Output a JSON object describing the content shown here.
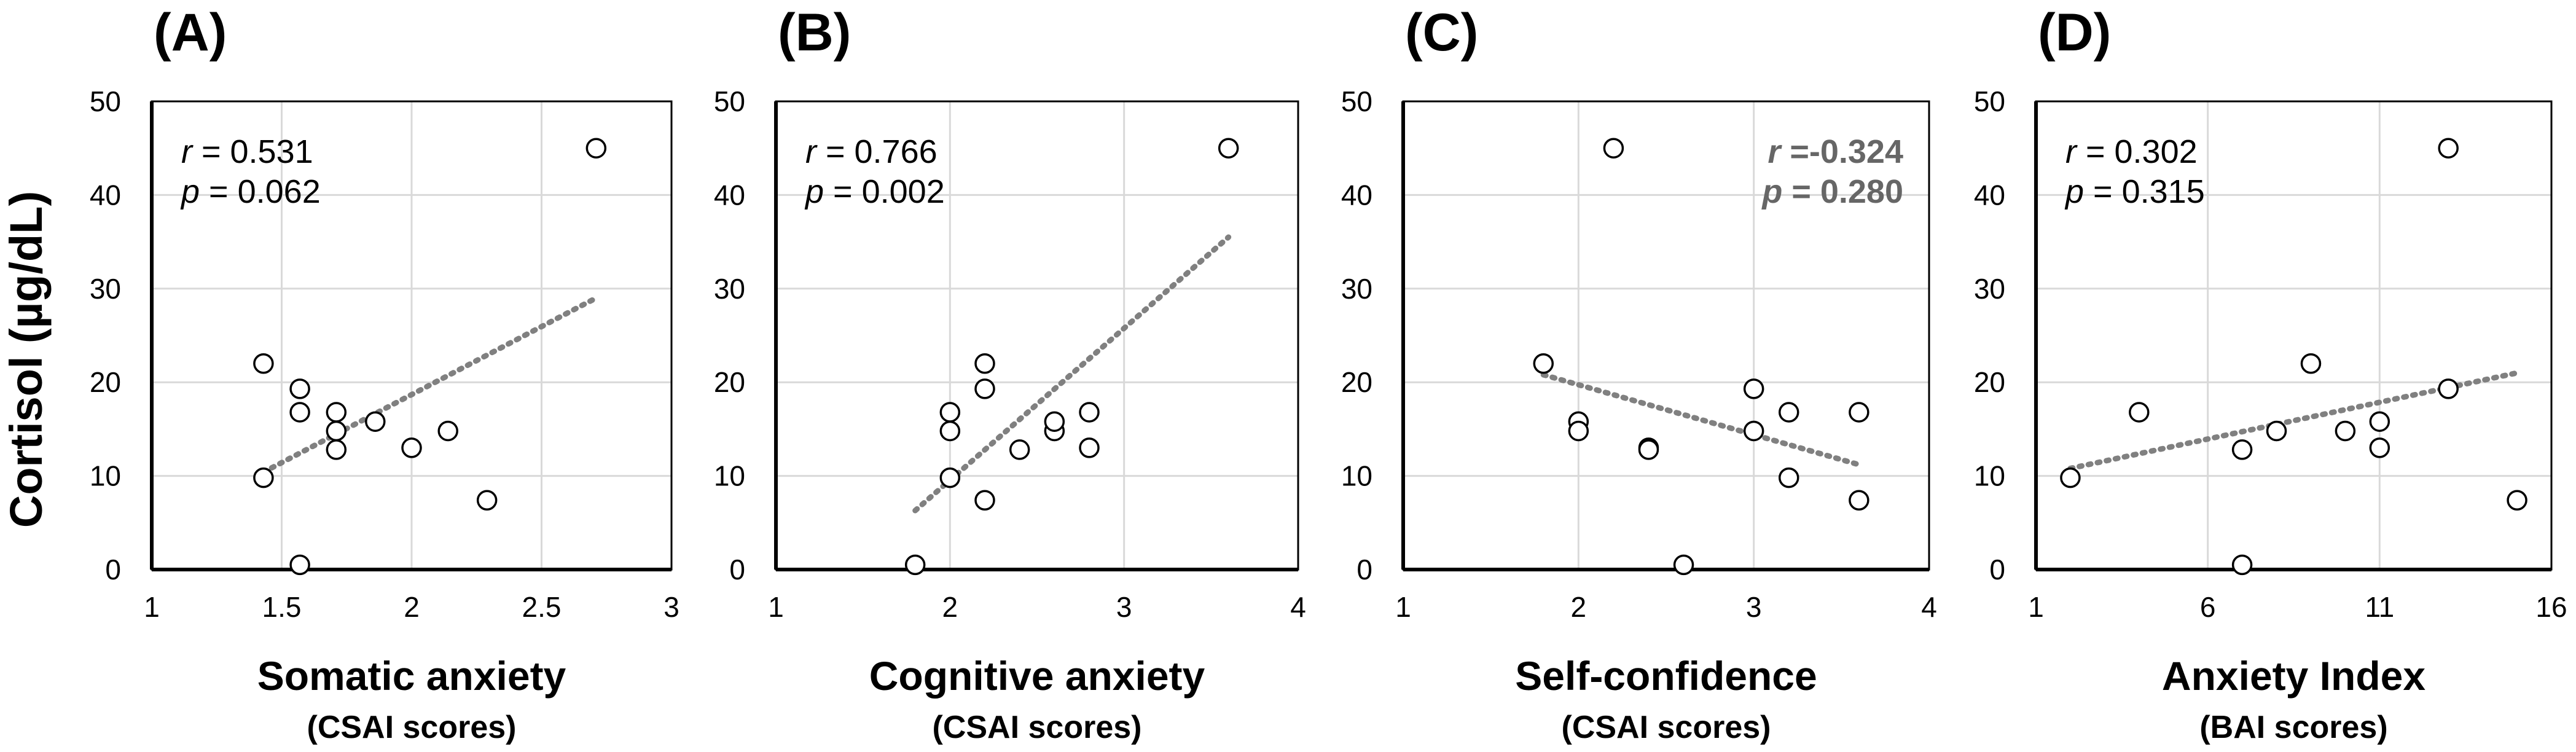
{
  "ylabel": "Cortisol (µg/dL)",
  "chart_data": [
    {
      "type": "scatter",
      "panel": "(A)",
      "xlabel": "Somatic anxiety",
      "xsublabel": "(CSAI scores)",
      "xlim": [
        1,
        3
      ],
      "xticks": [
        1,
        1.5,
        2,
        2.5,
        3
      ],
      "xtick_labels": [
        "1",
        "1.5",
        "2",
        "2.5",
        "3"
      ],
      "ylim": [
        0,
        50
      ],
      "yticks": [
        0,
        10,
        20,
        30,
        40,
        50
      ],
      "ytick_labels": [
        "0",
        "10",
        "20",
        "30",
        "40",
        "50"
      ],
      "r_label": "r = 0.531",
      "p_label": "p = 0.062",
      "r_var": "r",
      "r_value": "= 0.531",
      "p_var": "p",
      "p_value": "= 0.062",
      "stat_style": "normal",
      "stat_position": "top-left",
      "points": [
        [
          1.43,
          22
        ],
        [
          1.43,
          9.8
        ],
        [
          1.57,
          19.3
        ],
        [
          1.57,
          16.8
        ],
        [
          1.57,
          0.5
        ],
        [
          1.71,
          16.8
        ],
        [
          1.71,
          14.8
        ],
        [
          1.71,
          12.8
        ],
        [
          1.86,
          15.8
        ],
        [
          2.0,
          13.0
        ],
        [
          2.14,
          14.8
        ],
        [
          2.29,
          7.4
        ],
        [
          2.71,
          45
        ]
      ],
      "trendline": [
        [
          1.43,
          10.4
        ],
        [
          2.71,
          29.0
        ]
      ]
    },
    {
      "type": "scatter",
      "panel": "(B)",
      "xlabel": "Cognitive anxiety",
      "xsublabel": "(CSAI scores)",
      "xlim": [
        1,
        4
      ],
      "xticks": [
        1,
        2,
        3,
        4
      ],
      "xtick_labels": [
        "1",
        "2",
        "3",
        "4"
      ],
      "ylim": [
        0,
        50
      ],
      "yticks": [
        0,
        10,
        20,
        30,
        40,
        50
      ],
      "ytick_labels": [
        "0",
        "10",
        "20",
        "30",
        "40",
        "50"
      ],
      "r_label": "r = 0.766",
      "p_label": "p = 0.002",
      "r_var": "r",
      "r_value": "= 0.766",
      "p_var": "p",
      "p_value": "= 0.002",
      "stat_style": "normal",
      "stat_position": "top-left",
      "points": [
        [
          1.8,
          0.5
        ],
        [
          2.0,
          16.8
        ],
        [
          2.0,
          14.8
        ],
        [
          2.0,
          9.8
        ],
        [
          2.2,
          22
        ],
        [
          2.2,
          19.3
        ],
        [
          2.2,
          7.4
        ],
        [
          2.4,
          12.8
        ],
        [
          2.6,
          14.8
        ],
        [
          2.6,
          15.8
        ],
        [
          2.8,
          16.8
        ],
        [
          2.8,
          13.0
        ],
        [
          3.6,
          45
        ]
      ],
      "trendline": [
        [
          1.8,
          6.3
        ],
        [
          3.6,
          35.5
        ]
      ]
    },
    {
      "type": "scatter",
      "panel": "(C)",
      "xlabel": "Self-confidence",
      "xsublabel": "(CSAI scores)",
      "xlim": [
        1,
        4
      ],
      "xticks": [
        1,
        2,
        3,
        4
      ],
      "xtick_labels": [
        "1",
        "2",
        "3",
        "4"
      ],
      "ylim": [
        0,
        50
      ],
      "yticks": [
        0,
        10,
        20,
        30,
        40,
        50
      ],
      "ytick_labels": [
        "0",
        "10",
        "20",
        "30",
        "40",
        "50"
      ],
      "r_label": "r =-0.324",
      "p_label": "p = 0.280",
      "r_var": "r",
      "r_value": "=-0.324",
      "p_var": "p",
      "p_value": "= 0.280",
      "stat_style": "bold-gray",
      "stat_position": "top-right",
      "points": [
        [
          1.8,
          22
        ],
        [
          2.0,
          15.8
        ],
        [
          2.0,
          14.8
        ],
        [
          2.2,
          45
        ],
        [
          2.4,
          13.0
        ],
        [
          2.4,
          12.8
        ],
        [
          2.6,
          0.5
        ],
        [
          3.0,
          19.3
        ],
        [
          3.0,
          14.8
        ],
        [
          3.2,
          16.8
        ],
        [
          3.2,
          9.8
        ],
        [
          3.6,
          16.8
        ],
        [
          3.6,
          7.4
        ]
      ],
      "trendline": [
        [
          1.8,
          20.8
        ],
        [
          3.6,
          11.2
        ]
      ]
    },
    {
      "type": "scatter",
      "panel": "(D)",
      "xlabel": "Anxiety Index",
      "xsublabel": "(BAI scores)",
      "xlim": [
        1,
        16
      ],
      "xticks": [
        1,
        6,
        11,
        16
      ],
      "xtick_labels": [
        "1",
        "6",
        "11",
        "16"
      ],
      "ylim": [
        0,
        50
      ],
      "yticks": [
        0,
        10,
        20,
        30,
        40,
        50
      ],
      "ytick_labels": [
        "0",
        "10",
        "20",
        "30",
        "40",
        "50"
      ],
      "r_label": "r = 0.302",
      "p_label": "p = 0.315",
      "r_var": "r",
      "r_value": "= 0.302",
      "p_var": "p",
      "p_value": "= 0.315",
      "stat_style": "normal",
      "stat_position": "top-left",
      "points": [
        [
          2,
          9.8
        ],
        [
          4,
          16.8
        ],
        [
          7,
          12.8
        ],
        [
          7,
          0.5
        ],
        [
          8,
          14.8
        ],
        [
          9,
          22
        ],
        [
          10,
          14.8
        ],
        [
          11,
          15.8
        ],
        [
          11,
          13.0
        ],
        [
          13,
          45
        ],
        [
          13,
          19.3
        ],
        [
          15,
          7.4
        ]
      ],
      "trendline": [
        [
          2,
          10.8
        ],
        [
          15,
          21.0
        ]
      ]
    }
  ]
}
